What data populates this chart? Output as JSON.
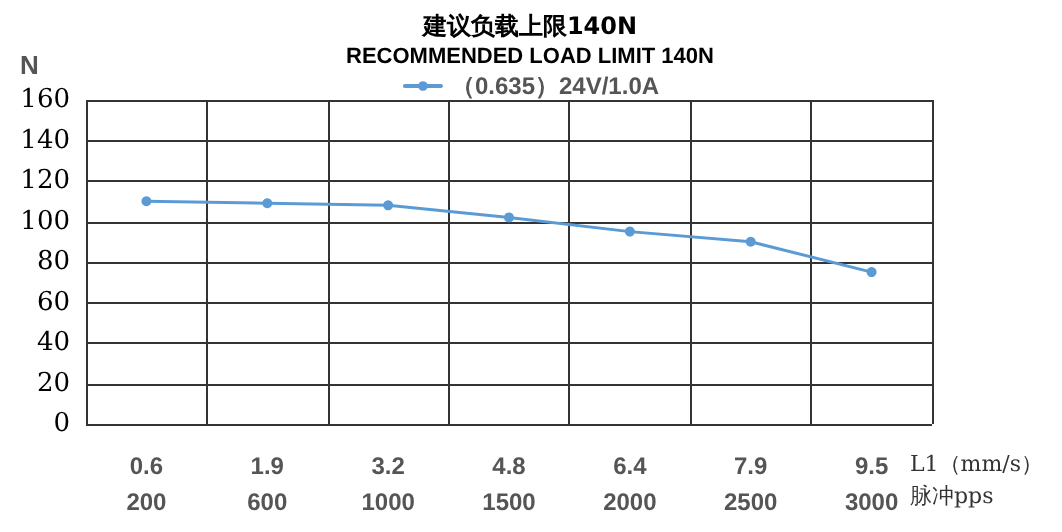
{
  "chart_data": {
    "type": "line",
    "title": "建议负载上限140N",
    "subtitle": "RECOMMENDED LOAD LIMIT 140N",
    "ylabel": "N",
    "xlabel": "L1（mm/s）脉冲pps",
    "categories": [
      "0.6\n200",
      "1.9\n600",
      "3.2\n1000",
      "4.8\n1500",
      "6.4\n2000",
      "7.9\n2500",
      "9.5\n3000"
    ],
    "series": [
      {
        "name": "（0.635）24V/1.0A",
        "color": "#5b9bd5",
        "values": [
          110,
          109,
          108,
          102,
          95,
          90,
          75
        ]
      }
    ],
    "ylim": [
      0,
      160
    ],
    "yticks": [
      0,
      20,
      40,
      60,
      80,
      100,
      120,
      140,
      160
    ],
    "grid": true,
    "legend": "top",
    "marker": "circle",
    "line_style": "solid"
  }
}
